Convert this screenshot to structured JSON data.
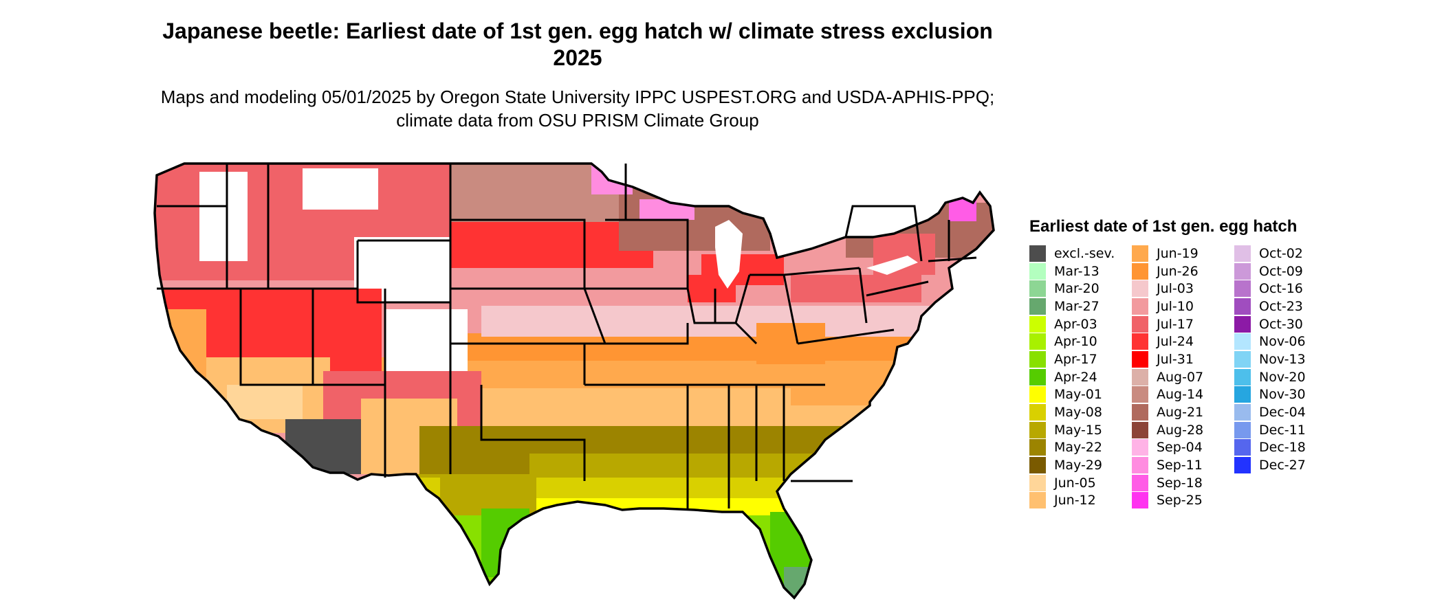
{
  "title": "Japanese beetle: Earliest date of 1st gen. egg hatch w/ climate stress exclusion 2025",
  "subtitle": "Maps and modeling 05/01/2025 by Oregon State University IPPC USPEST.ORG and USDA-APHIS-PPQ; climate data from OSU PRISM Climate Group",
  "legend": {
    "title": "Earliest date of 1st gen. egg hatch",
    "items": [
      {
        "label": "excl.-sev.",
        "color": "#4d4d4d"
      },
      {
        "label": "Mar-13",
        "color": "#b3ffbf"
      },
      {
        "label": "Mar-20",
        "color": "#8dd694"
      },
      {
        "label": "Mar-27",
        "color": "#66a86e"
      },
      {
        "label": "Apr-03",
        "color": "#ccff00"
      },
      {
        "label": "Apr-10",
        "color": "#a8f000"
      },
      {
        "label": "Apr-17",
        "color": "#88e000"
      },
      {
        "label": "Apr-24",
        "color": "#55cc00"
      },
      {
        "label": "May-01",
        "color": "#ffff00"
      },
      {
        "label": "May-08",
        "color": "#d9d000"
      },
      {
        "label": "May-15",
        "color": "#b8a800"
      },
      {
        "label": "May-22",
        "color": "#9c8400"
      },
      {
        "label": "May-29",
        "color": "#7a5a00"
      },
      {
        "label": "Jun-05",
        "color": "#ffd699"
      },
      {
        "label": "Jun-12",
        "color": "#ffc070"
      },
      {
        "label": "Jun-19",
        "color": "#ffa94d"
      },
      {
        "label": "Jun-26",
        "color": "#ff9533"
      },
      {
        "label": "Jul-03",
        "color": "#f5c8cc"
      },
      {
        "label": "Jul-10",
        "color": "#f29a9e"
      },
      {
        "label": "Jul-17",
        "color": "#f06268"
      },
      {
        "label": "Jul-24",
        "color": "#ff3333"
      },
      {
        "label": "Jul-31",
        "color": "#ff0000"
      },
      {
        "label": "Aug-07",
        "color": "#dcb0a8"
      },
      {
        "label": "Aug-14",
        "color": "#c98b80"
      },
      {
        "label": "Aug-21",
        "color": "#b06a5e"
      },
      {
        "label": "Aug-28",
        "color": "#8c4438"
      },
      {
        "label": "Sep-04",
        "color": "#ffb3e6"
      },
      {
        "label": "Sep-11",
        "color": "#ff8ce0"
      },
      {
        "label": "Sep-18",
        "color": "#ff5ce6"
      },
      {
        "label": "Sep-25",
        "color": "#ff33f0"
      },
      {
        "label": "Oct-02",
        "color": "#e0bfe6"
      },
      {
        "label": "Oct-09",
        "color": "#cc99d9"
      },
      {
        "label": "Oct-16",
        "color": "#b873cc"
      },
      {
        "label": "Oct-23",
        "color": "#a04dbf"
      },
      {
        "label": "Oct-30",
        "color": "#8c1aa6"
      },
      {
        "label": "Nov-06",
        "color": "#b3e6ff"
      },
      {
        "label": "Nov-13",
        "color": "#80d4f5"
      },
      {
        "label": "Nov-20",
        "color": "#4dbfeb"
      },
      {
        "label": "Nov-30",
        "color": "#26a6e0"
      },
      {
        "label": "Dec-04",
        "color": "#99bbee"
      },
      {
        "label": "Dec-11",
        "color": "#7799ee"
      },
      {
        "label": "Dec-18",
        "color": "#5566ee"
      },
      {
        "label": "Dec-27",
        "color": "#2233ff"
      }
    ]
  }
}
